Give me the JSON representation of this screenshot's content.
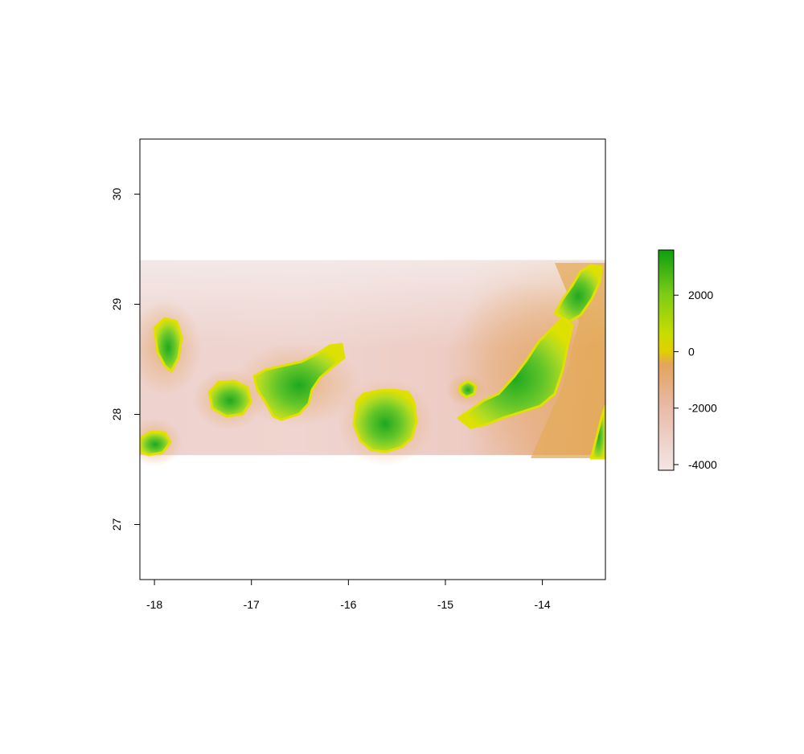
{
  "map": {
    "type": "raster",
    "x_ticks": [
      "-18",
      "-17",
      "-16",
      "-15",
      "-14"
    ],
    "y_ticks": [
      "27",
      "28",
      "29",
      "30"
    ],
    "x_range": [
      -18.15,
      -13.35
    ],
    "y_range": [
      26.5,
      30.5
    ],
    "raster_extent": {
      "x": [
        -18.15,
        -13.35
      ],
      "y": [
        27.63,
        29.4
      ]
    },
    "legend": {
      "labels": [
        "2000",
        "0",
        "-2000",
        "-4000"
      ],
      "range": [
        -4200,
        3600
      ],
      "placement": "right"
    },
    "colors": {
      "deep": "#f2e2e2",
      "mid_deep": "#e8b8a8",
      "shallow": "#e3a86c",
      "sea_level": "#e0e000",
      "low_land": "#a8d820",
      "high_land": "#11a011"
    },
    "islands": [
      {
        "name_hint": "La Palma"
      },
      {
        "name_hint": "La Gomera"
      },
      {
        "name_hint": "El Hierro"
      },
      {
        "name_hint": "Tenerife"
      },
      {
        "name_hint": "Gran Canaria"
      },
      {
        "name_hint": "Fuerteventura"
      },
      {
        "name_hint": "Lanzarote"
      }
    ]
  }
}
